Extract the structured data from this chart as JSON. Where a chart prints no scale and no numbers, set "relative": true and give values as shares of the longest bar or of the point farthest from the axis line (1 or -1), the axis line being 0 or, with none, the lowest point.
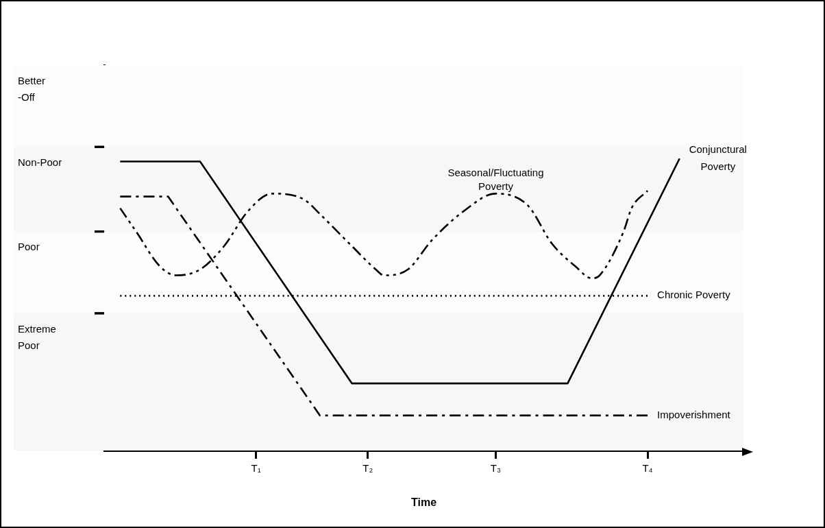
{
  "chart_data": {
    "type": "line",
    "relative": true,
    "xlabel": "Time",
    "categories": [
      null,
      null,
      null,
      null,
      null,
      null,
      null,
      null,
      null,
      null,
      null,
      null,
      null,
      null,
      null,
      null,
      null,
      null,
      null,
      "T₁",
      null,
      null,
      null,
      null,
      null,
      null,
      null,
      null,
      null,
      null,
      null,
      null,
      null,
      "T₂",
      null,
      null,
      null,
      null,
      null,
      null,
      null,
      null,
      null,
      null,
      null,
      null,
      null,
      null,
      null,
      "T₃",
      null,
      null,
      null,
      null,
      null,
      null,
      null,
      null,
      null,
      null,
      null,
      null,
      null,
      null,
      null,
      null,
      null,
      null,
      "T₄",
      null,
      null,
      null,
      null,
      null,
      null,
      null,
      null,
      null,
      null,
      null,
      null
    ],
    "bands": [
      {
        "axis": "y",
        "from": 0,
        "to": 0.47,
        "label": "Extreme Poor",
        "color": "#f7f7f7"
      },
      {
        "axis": "y",
        "from": 0.47,
        "to": 0.75,
        "label": "Poor",
        "color": "#fcfcfc"
      },
      {
        "axis": "y",
        "from": 0.75,
        "to": 1.04,
        "label": "Non-Poor",
        "color": "#f7f7f7"
      },
      {
        "axis": "y",
        "from": 1.04,
        "to": 1.32,
        "label": "Better -Off",
        "color": "#fcfcfc"
      }
    ],
    "series": [
      {
        "name": "Conjunctural Poverty",
        "color": "#000000",
        "line_style": "solid",
        "values": [
          null,
          null,
          0.99,
          null,
          null,
          null,
          null,
          null,
          null,
          null,
          null,
          null,
          0.99,
          null,
          null,
          null,
          null,
          null,
          null,
          null,
          null,
          null,
          null,
          null,
          null,
          null,
          null,
          null,
          null,
          null,
          null,
          0.23,
          null,
          null,
          null,
          null,
          null,
          null,
          null,
          null,
          null,
          null,
          null,
          null,
          null,
          null,
          null,
          null,
          null,
          null,
          null,
          null,
          null,
          null,
          null,
          null,
          null,
          null,
          0.23,
          null,
          null,
          null,
          null,
          null,
          null,
          null,
          null,
          null,
          null,
          null,
          null,
          null,
          1,
          null,
          null,
          null,
          null,
          null,
          null,
          null,
          null
        ]
      },
      {
        "name": "Impoverishment",
        "color": "#000000",
        "line_style": "dashdot",
        "values": [
          null,
          null,
          0.87,
          null,
          null,
          null,
          null,
          null,
          0.87,
          null,
          null,
          null,
          null,
          null,
          null,
          null,
          null,
          null,
          null,
          null,
          null,
          null,
          null,
          null,
          null,
          null,
          null,
          0.12,
          null,
          null,
          null,
          null,
          null,
          null,
          null,
          null,
          null,
          null,
          null,
          null,
          null,
          null,
          null,
          null,
          null,
          null,
          null,
          null,
          null,
          null,
          null,
          null,
          null,
          null,
          null,
          null,
          null,
          null,
          null,
          null,
          null,
          null,
          null,
          null,
          null,
          null,
          null,
          null,
          0.12,
          null,
          null,
          null,
          null,
          null,
          null,
          null,
          null,
          null,
          null,
          null,
          null
        ]
      },
      {
        "name": "Chronic Poverty",
        "color": "#000000",
        "line_style": "dotted",
        "values": [
          null,
          null,
          0.53,
          null,
          null,
          null,
          null,
          null,
          null,
          null,
          null,
          null,
          null,
          null,
          null,
          null,
          null,
          null,
          null,
          null,
          null,
          null,
          null,
          null,
          null,
          null,
          null,
          null,
          null,
          null,
          null,
          null,
          null,
          null,
          null,
          null,
          null,
          null,
          null,
          null,
          null,
          null,
          null,
          null,
          null,
          null,
          null,
          null,
          null,
          null,
          null,
          null,
          null,
          null,
          null,
          null,
          null,
          null,
          null,
          null,
          null,
          null,
          null,
          null,
          null,
          null,
          null,
          null,
          0.53,
          null,
          null,
          null,
          null,
          null,
          null,
          null,
          null,
          null,
          null,
          null,
          null
        ]
      },
      {
        "name": "Seasonal/Fluctuating Poverty",
        "color": "#000000",
        "line_style": "dashdotdot",
        "values": [
          null,
          null,
          0.83,
          null,
          0.75,
          null,
          null,
          0.63,
          null,
          0.6,
          null,
          null,
          0.62,
          null,
          null,
          0.7,
          null,
          null,
          0.82,
          null,
          null,
          0.88,
          null,
          null,
          null,
          0.86,
          null,
          0.81,
          null,
          null,
          null,
          0.7,
          null,
          null,
          0.62,
          0.6,
          null,
          null,
          0.62,
          null,
          null,
          0.72,
          null,
          null,
          null,
          0.82,
          null,
          null,
          null,
          0.88,
          null,
          null,
          null,
          0.84,
          null,
          null,
          0.71,
          null,
          null,
          0.63,
          null,
          0.59,
          0.6,
          null,
          null,
          0.75,
          0.83,
          null,
          0.89,
          null,
          null,
          null,
          null,
          null,
          null,
          null,
          null,
          null,
          null,
          null,
          null
        ]
      }
    ]
  }
}
